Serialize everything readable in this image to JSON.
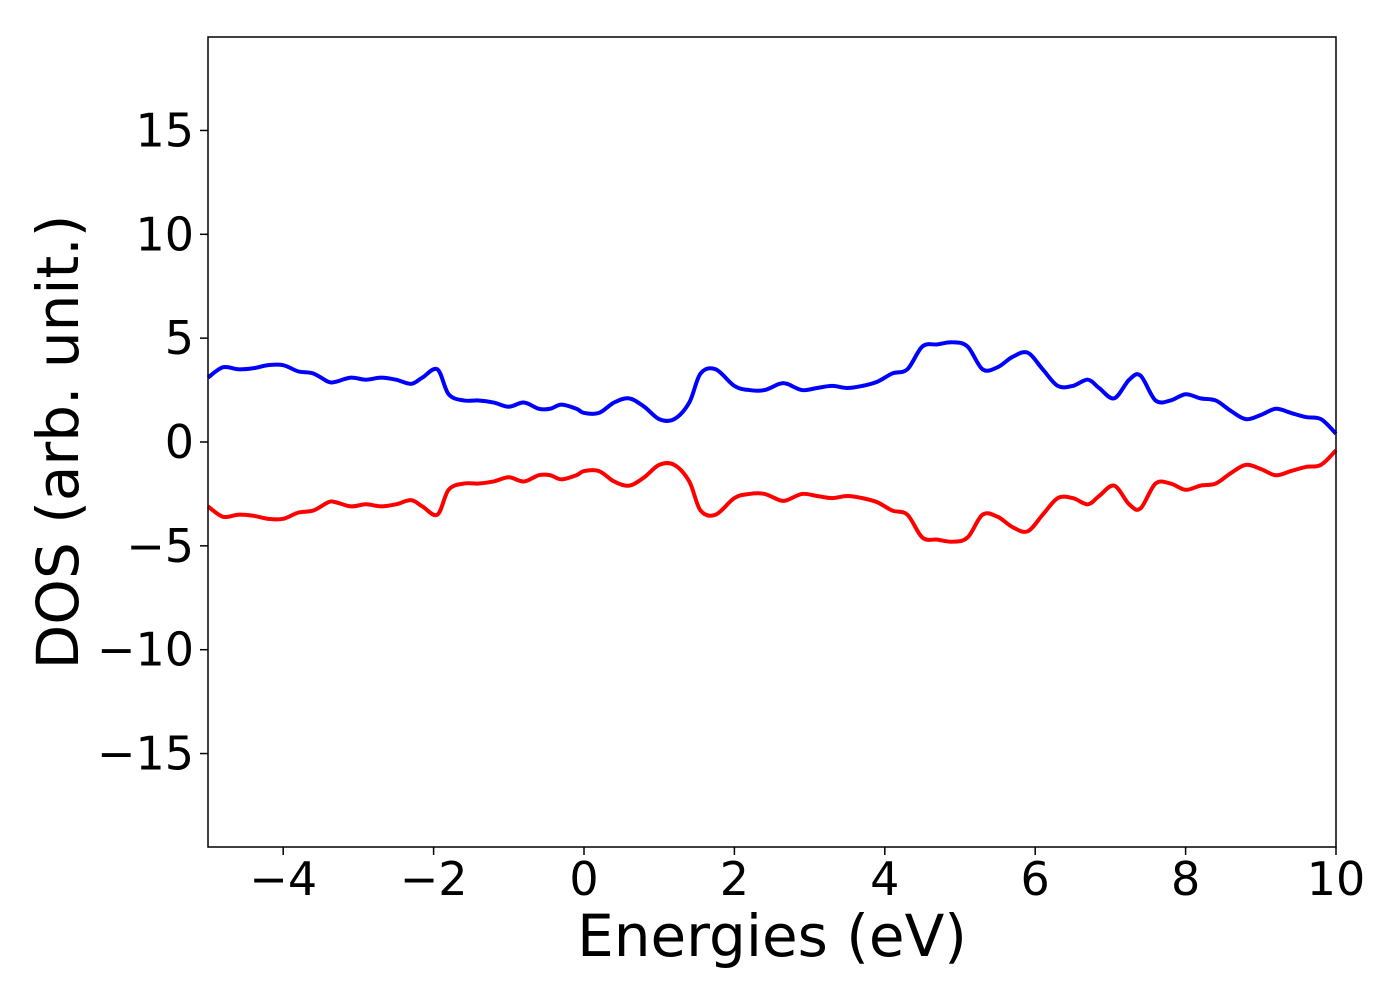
{
  "chart_data": {
    "type": "line",
    "title": "",
    "xlabel": "Energies (eV)",
    "ylabel": "DOS (arb. unit.)",
    "xlim": [
      -5,
      10
    ],
    "ylim": [
      -19.5,
      19.5
    ],
    "xticks": [
      -4,
      -2,
      0,
      2,
      4,
      6,
      8,
      10
    ],
    "xtick_labels": [
      "−4",
      "−2",
      "0",
      "2",
      "4",
      "6",
      "8",
      "10"
    ],
    "yticks": [
      -15,
      -10,
      -5,
      0,
      5,
      10,
      15
    ],
    "ytick_labels": [
      "−15",
      "−10",
      "−5",
      "0",
      "5",
      "10",
      "15"
    ],
    "grid": false,
    "legend": "none",
    "series": [
      {
        "color": "#0000ff",
        "x": [
          -5.0,
          -4.8,
          -4.6,
          -4.4,
          -4.2,
          -4.0,
          -3.8,
          -3.6,
          -3.4,
          -3.3,
          -3.1,
          -2.9,
          -2.7,
          -2.5,
          -2.3,
          -2.15,
          -1.95,
          -1.8,
          -1.6,
          -1.4,
          -1.2,
          -1.0,
          -0.8,
          -0.6,
          -0.45,
          -0.3,
          -0.1,
          0.0,
          0.2,
          0.4,
          0.6,
          0.8,
          1.0,
          1.2,
          1.4,
          1.55,
          1.75,
          2.0,
          2.2,
          2.4,
          2.6,
          2.7,
          2.9,
          3.1,
          3.3,
          3.5,
          3.7,
          3.9,
          4.1,
          4.3,
          4.5,
          4.7,
          4.9,
          5.1,
          5.3,
          5.5,
          5.7,
          5.9,
          6.1,
          6.3,
          6.5,
          6.7,
          6.85,
          7.05,
          7.25,
          7.4,
          7.6,
          7.8,
          8.0,
          8.2,
          8.4,
          8.6,
          8.8,
          9.0,
          9.2,
          9.4,
          9.6,
          9.8,
          10.0
        ],
        "values": [
          3.1,
          3.6,
          3.5,
          3.55,
          3.7,
          3.7,
          3.4,
          3.3,
          2.9,
          2.9,
          3.1,
          3.0,
          3.1,
          3.0,
          2.8,
          3.1,
          3.5,
          2.3,
          2.0,
          2.0,
          1.9,
          1.7,
          1.9,
          1.6,
          1.6,
          1.8,
          1.6,
          1.4,
          1.4,
          1.9,
          2.1,
          1.7,
          1.1,
          1.1,
          1.9,
          3.3,
          3.5,
          2.7,
          2.5,
          2.5,
          2.8,
          2.8,
          2.5,
          2.6,
          2.7,
          2.6,
          2.7,
          2.9,
          3.3,
          3.5,
          4.6,
          4.7,
          4.8,
          4.6,
          3.5,
          3.6,
          4.1,
          4.3,
          3.5,
          2.7,
          2.7,
          3.0,
          2.6,
          2.1,
          3.0,
          3.2,
          2.0,
          2.0,
          2.3,
          2.1,
          2.0,
          1.5,
          1.1,
          1.3,
          1.6,
          1.4,
          1.2,
          1.1,
          0.4
        ]
      },
      {
        "color": "#ff0000",
        "x": [
          -5.0,
          -4.8,
          -4.6,
          -4.4,
          -4.2,
          -4.0,
          -3.8,
          -3.6,
          -3.4,
          -3.3,
          -3.1,
          -2.9,
          -2.7,
          -2.5,
          -2.3,
          -2.15,
          -1.95,
          -1.8,
          -1.6,
          -1.4,
          -1.2,
          -1.0,
          -0.8,
          -0.6,
          -0.45,
          -0.3,
          -0.1,
          0.0,
          0.2,
          0.4,
          0.6,
          0.8,
          1.0,
          1.2,
          1.4,
          1.55,
          1.75,
          2.0,
          2.2,
          2.4,
          2.6,
          2.7,
          2.9,
          3.1,
          3.3,
          3.5,
          3.7,
          3.9,
          4.1,
          4.3,
          4.5,
          4.7,
          4.9,
          5.1,
          5.3,
          5.5,
          5.7,
          5.9,
          6.1,
          6.3,
          6.5,
          6.7,
          6.85,
          7.05,
          7.25,
          7.4,
          7.6,
          7.8,
          8.0,
          8.2,
          8.4,
          8.6,
          8.8,
          9.0,
          9.2,
          9.4,
          9.6,
          9.8,
          10.0
        ],
        "values": [
          -3.1,
          -3.6,
          -3.5,
          -3.55,
          -3.7,
          -3.7,
          -3.4,
          -3.3,
          -2.9,
          -2.9,
          -3.1,
          -3.0,
          -3.1,
          -3.0,
          -2.8,
          -3.1,
          -3.5,
          -2.3,
          -2.0,
          -2.0,
          -1.9,
          -1.7,
          -1.9,
          -1.6,
          -1.6,
          -1.8,
          -1.6,
          -1.4,
          -1.4,
          -1.9,
          -2.1,
          -1.7,
          -1.1,
          -1.1,
          -1.9,
          -3.3,
          -3.5,
          -2.7,
          -2.5,
          -2.5,
          -2.8,
          -2.8,
          -2.5,
          -2.6,
          -2.7,
          -2.6,
          -2.7,
          -2.9,
          -3.3,
          -3.5,
          -4.6,
          -4.7,
          -4.8,
          -4.6,
          -3.5,
          -3.6,
          -4.1,
          -4.3,
          -3.5,
          -2.7,
          -2.7,
          -3.0,
          -2.6,
          -2.1,
          -3.0,
          -3.2,
          -2.0,
          -2.0,
          -2.3,
          -2.1,
          -2.0,
          -1.5,
          -1.1,
          -1.3,
          -1.6,
          -1.4,
          -1.2,
          -1.1,
          -0.4
        ]
      }
    ]
  }
}
